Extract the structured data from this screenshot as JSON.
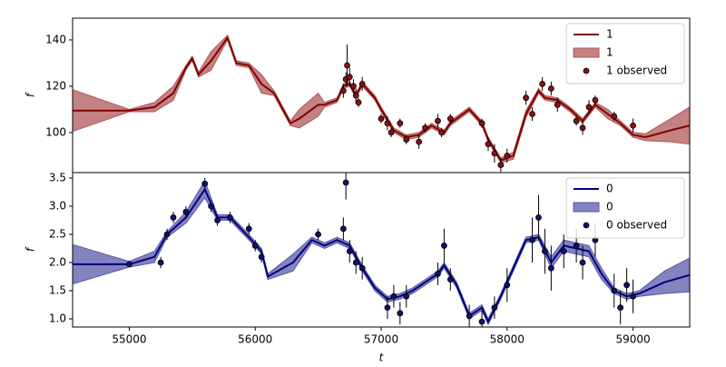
{
  "chart_data": [
    {
      "type": "line",
      "ylabel": "f",
      "xlim": [
        54550,
        59450
      ],
      "ylim": [
        82.7,
        149.4
      ],
      "yticks": [
        100,
        120,
        140
      ],
      "legend": "upper right",
      "series": [
        {
          "name": "1",
          "type": "line",
          "color": "#800000",
          "x": [
            54550,
            55000,
            55200,
            55350,
            55450,
            55500,
            55550,
            55650,
            55780,
            55850,
            55950,
            56050,
            56150,
            56280,
            56350,
            56500,
            56550,
            56650,
            56700,
            56750,
            56800,
            56850,
            56950,
            57000,
            57100,
            57200,
            57300,
            57400,
            57500,
            57550,
            57700,
            57800,
            57850,
            57950,
            58050,
            58150,
            58250,
            58300,
            58400,
            58500,
            58600,
            58700,
            58800,
            58900,
            59000,
            59100,
            59300,
            59450
          ],
          "values": [
            109.5,
            109.5,
            111,
            117,
            128,
            132,
            125,
            131,
            141,
            130,
            129,
            121,
            117,
            104,
            106,
            112,
            112,
            114,
            120,
            121,
            116,
            121,
            115,
            110,
            101,
            98,
            99,
            103,
            100,
            104,
            110,
            104,
            97,
            88,
            90,
            108,
            118,
            115,
            114,
            110,
            105,
            112,
            108,
            104,
            99,
            98,
            101,
            103
          ]
        },
        {
          "name": "1",
          "type": "band",
          "color": "#b05858",
          "x": [
            54550,
            55000,
            55200,
            55350,
            55450,
            55500,
            55550,
            55650,
            55780,
            55850,
            55950,
            56050,
            56150,
            56280,
            56350,
            56500,
            56550,
            56650,
            56700,
            56750,
            56800,
            56850,
            56950,
            57000,
            57100,
            57200,
            57300,
            57400,
            57500,
            57550,
            57700,
            57800,
            57850,
            57950,
            58050,
            58150,
            58250,
            58300,
            58400,
            58500,
            58600,
            58700,
            58800,
            58900,
            59000,
            59100,
            59300,
            59450
          ],
          "lower": [
            100.5,
            109,
            109,
            114,
            127,
            131,
            124,
            127,
            140,
            129,
            128,
            117,
            116,
            103,
            102,
            107,
            111,
            113,
            119,
            120,
            115,
            120,
            114,
            109,
            100,
            97,
            98,
            102,
            99,
            103,
            109,
            103,
            96,
            87,
            88.5,
            106.5,
            117,
            114,
            113,
            109,
            104,
            111,
            106,
            103,
            98,
            96.5,
            96,
            95
          ],
          "upper": [
            118.5,
            110,
            113,
            120,
            129,
            133,
            126,
            135,
            142,
            131,
            130,
            125,
            118,
            105,
            110,
            117,
            113,
            115,
            121,
            122,
            117,
            122,
            116,
            111,
            102,
            99,
            100,
            104,
            101,
            105,
            111,
            105,
            98,
            89,
            91.5,
            109.5,
            119,
            116,
            115,
            111,
            106,
            113,
            110,
            105,
            100,
            99.5,
            106,
            111
          ]
        },
        {
          "name": "1 observed",
          "type": "errorbar",
          "color": "#8b1010",
          "x": [
            56700,
            56720,
            56730,
            56750,
            56780,
            56800,
            56820,
            56850,
            57000,
            57050,
            57080,
            57150,
            57200,
            57300,
            57350,
            57450,
            57480,
            57550,
            57800,
            57850,
            57900,
            57950,
            58000,
            58150,
            58200,
            58280,
            58350,
            58400,
            58550,
            58600,
            58650,
            58700,
            58850,
            59000
          ],
          "values": [
            118,
            123,
            129,
            124,
            120,
            116,
            113,
            121,
            106,
            104,
            100,
            104,
            97,
            96,
            102,
            105,
            100,
            106,
            104,
            95,
            91,
            86,
            90,
            115,
            108,
            121,
            119,
            112,
            105,
            102,
            111,
            114,
            107,
            103
          ],
          "errors": [
            3,
            3,
            9,
            4,
            3,
            3,
            2,
            3,
            2,
            3,
            2,
            2,
            2,
            3,
            2,
            3,
            2,
            2,
            2,
            3,
            4,
            3,
            3,
            3,
            3,
            3,
            3,
            3,
            2,
            3,
            3,
            2,
            2,
            3
          ]
        }
      ]
    },
    {
      "type": "line",
      "ylabel": "f",
      "xlabel": "t",
      "xlim": [
        54550,
        59450
      ],
      "ylim": [
        0.855,
        3.597
      ],
      "xticks": [
        55000,
        56000,
        57000,
        58000,
        59000
      ],
      "yticks": [
        {
          "value": 1,
          "label": "1.0"
        },
        1.5,
        {
          "value": 2,
          "label": "2.0"
        },
        2.5,
        {
          "value": 3,
          "label": "3.0"
        },
        3.5
      ],
      "legend": "upper right",
      "series": [
        {
          "name": "0",
          "type": "line",
          "color": "#000080",
          "x": [
            54550,
            55000,
            55200,
            55300,
            55450,
            55600,
            55700,
            55800,
            55950,
            56050,
            56100,
            56300,
            56450,
            56550,
            56650,
            56750,
            56850,
            56950,
            57050,
            57150,
            57250,
            57350,
            57450,
            57500,
            57600,
            57700,
            57800,
            57850,
            57950,
            58050,
            58150,
            58250,
            58350,
            58450,
            58550,
            58650,
            58750,
            58850,
            58950,
            59050,
            59250,
            59450
          ],
          "values": [
            1.97,
            1.97,
            2.1,
            2.5,
            2.8,
            3.3,
            2.8,
            2.8,
            2.45,
            2.2,
            1.75,
            2.0,
            2.4,
            2.3,
            2.4,
            2.3,
            1.9,
            1.55,
            1.35,
            1.4,
            1.5,
            1.65,
            1.8,
            1.95,
            1.6,
            1.05,
            1.2,
            0.95,
            1.4,
            1.9,
            2.4,
            2.45,
            2.0,
            2.3,
            2.25,
            2.2,
            1.8,
            1.5,
            1.4,
            1.45,
            1.65,
            1.78
          ]
        },
        {
          "name": "0",
          "type": "band",
          "color": "#5a5aaa",
          "x": [
            54550,
            55000,
            55200,
            55300,
            55450,
            55600,
            55700,
            55800,
            55950,
            56050,
            56100,
            56300,
            56450,
            56550,
            56650,
            56750,
            56850,
            56950,
            57050,
            57150,
            57250,
            57350,
            57450,
            57500,
            57600,
            57700,
            57800,
            57850,
            57950,
            58050,
            58150,
            58250,
            58350,
            58450,
            58550,
            58650,
            58750,
            58850,
            58950,
            59050,
            59250,
            59450
          ],
          "lower": [
            1.62,
            1.92,
            2.0,
            2.45,
            2.7,
            3.15,
            2.75,
            2.75,
            2.4,
            2.15,
            1.7,
            1.85,
            2.35,
            2.25,
            2.35,
            2.25,
            1.85,
            1.5,
            1.3,
            1.35,
            1.45,
            1.6,
            1.75,
            1.9,
            1.55,
            1.0,
            1.15,
            0.9,
            1.35,
            1.85,
            2.35,
            2.4,
            1.9,
            2.2,
            2.15,
            2.1,
            1.7,
            1.45,
            1.35,
            1.4,
            1.45,
            1.48
          ],
          "upper": [
            2.32,
            2.02,
            2.2,
            2.55,
            2.9,
            3.45,
            2.85,
            2.85,
            2.5,
            2.25,
            1.8,
            2.15,
            2.45,
            2.35,
            2.45,
            2.35,
            1.95,
            1.6,
            1.4,
            1.45,
            1.55,
            1.7,
            1.85,
            2.0,
            1.65,
            1.1,
            1.25,
            1.0,
            1.45,
            1.95,
            2.45,
            2.5,
            2.1,
            2.4,
            2.35,
            2.3,
            1.9,
            1.55,
            1.45,
            1.5,
            1.85,
            2.08
          ]
        },
        {
          "name": "0 observed",
          "type": "errorbar",
          "color": "#101070",
          "x": [
            55000,
            55250,
            55300,
            55350,
            55450,
            55600,
            55650,
            55700,
            55800,
            55950,
            56000,
            56050,
            56500,
            56700,
            56720,
            56750,
            56800,
            56850,
            57050,
            57100,
            57150,
            57200,
            57450,
            57500,
            57550,
            57700,
            57800,
            57900,
            58000,
            58200,
            58250,
            58300,
            58350,
            58450,
            58550,
            58600,
            58700,
            58850,
            58900,
            58950,
            59000
          ],
          "values": [
            1.97,
            2.0,
            2.5,
            2.8,
            2.9,
            3.4,
            3.0,
            2.75,
            2.8,
            2.6,
            2.3,
            2.1,
            2.5,
            2.6,
            3.42,
            2.2,
            2.0,
            1.9,
            1.2,
            1.4,
            1.1,
            1.4,
            1.8,
            2.3,
            1.7,
            1.05,
            0.95,
            1.2,
            1.6,
            2.4,
            2.8,
            2.2,
            1.9,
            2.2,
            2.3,
            2.0,
            2.4,
            1.5,
            1.2,
            1.6,
            1.4
          ],
          "errors": [
            0.05,
            0.1,
            0.1,
            0.1,
            0.1,
            0.1,
            0.1,
            0.1,
            0.1,
            0.1,
            0.1,
            0.1,
            0.1,
            0.2,
            0.3,
            0.2,
            0.2,
            0.2,
            0.2,
            0.2,
            0.2,
            0.2,
            0.2,
            0.3,
            0.2,
            0.2,
            0.2,
            0.2,
            0.3,
            0.4,
            0.4,
            0.4,
            0.4,
            0.3,
            0.3,
            0.3,
            0.3,
            0.3,
            0.3,
            0.3,
            0.3
          ]
        }
      ]
    }
  ]
}
